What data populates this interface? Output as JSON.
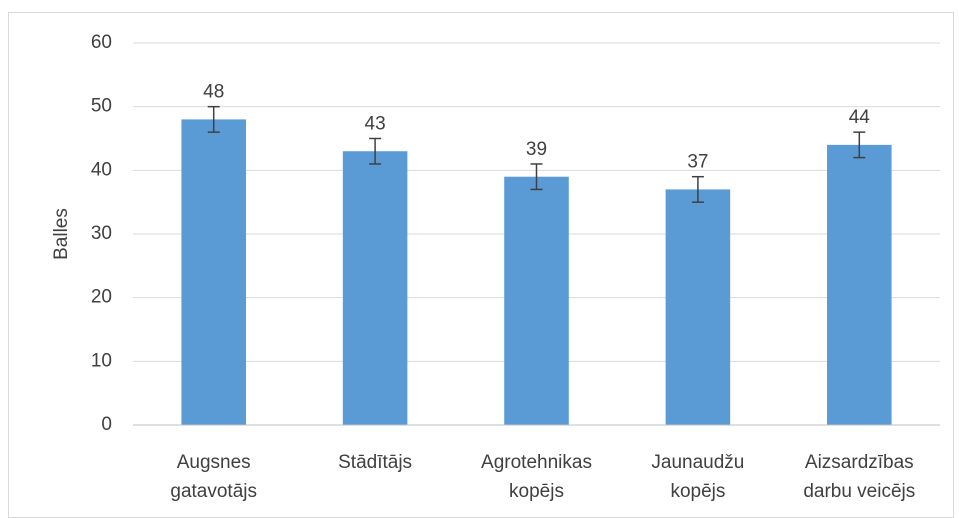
{
  "chart_data": {
    "type": "bar",
    "y_label": "Balles",
    "categories": [
      [
        "Augsnes",
        "gatavotājs"
      ],
      [
        "Stādītājs"
      ],
      [
        "Agrotehnikas",
        "kopējs"
      ],
      [
        "Jaunaudžu",
        "kopējs"
      ],
      [
        "Aizsardzības",
        "darbu veicējs"
      ]
    ],
    "values": [
      48,
      43,
      39,
      37,
      44
    ],
    "errors": [
      2,
      2,
      2,
      2,
      2
    ],
    "color": "#5b9bd5",
    "error_color": "#404040",
    "ylim": [
      0,
      60
    ],
    "yticks": [
      0,
      10,
      20,
      30,
      40,
      50,
      60
    ],
    "grid": true
  }
}
